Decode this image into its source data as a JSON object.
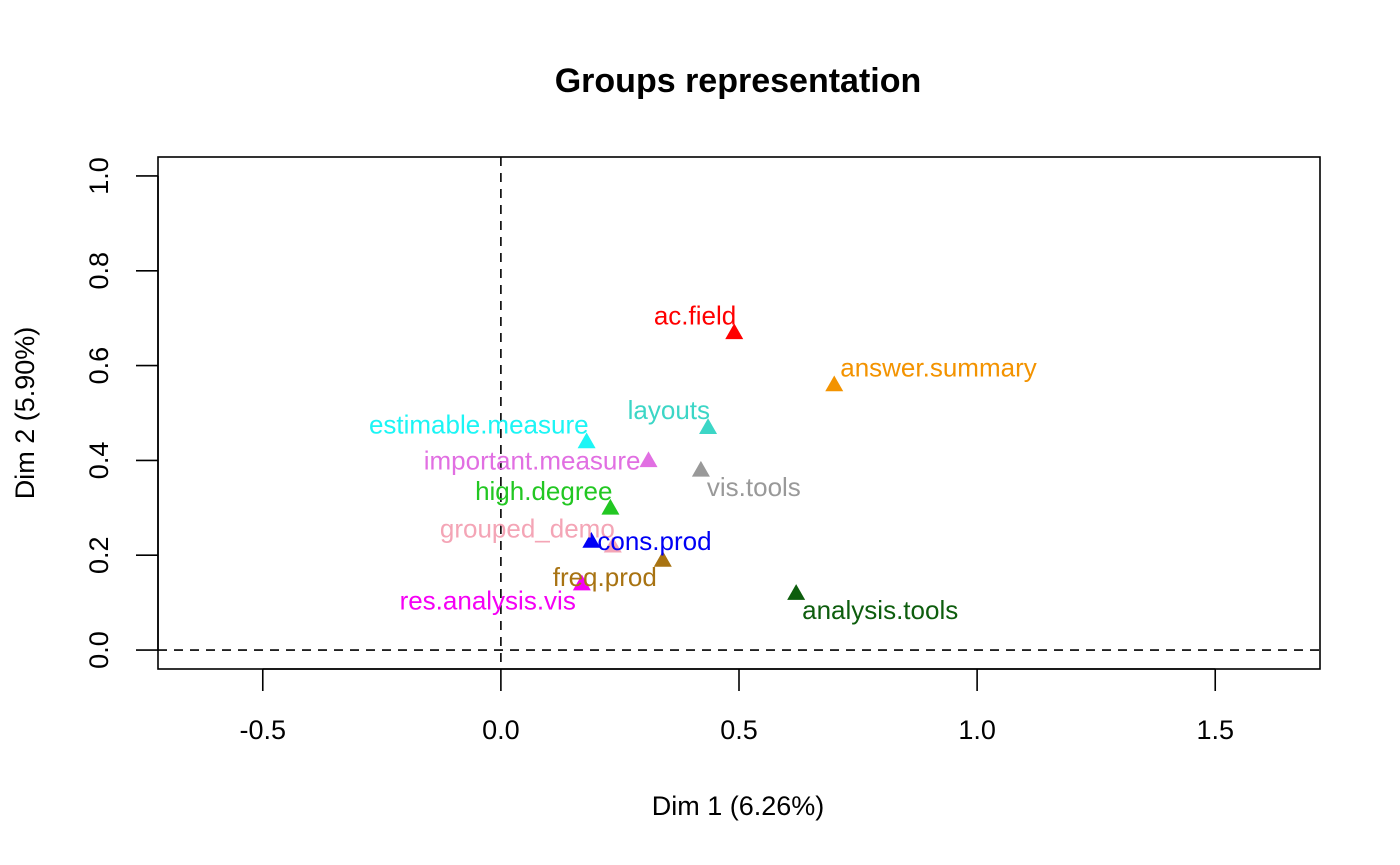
{
  "chart_data": {
    "type": "scatter",
    "title": "Groups representation",
    "xlabel": "Dim 1 (6.26%)",
    "ylabel": "Dim 2 (5.90%)",
    "xlim": [
      -0.72,
      1.72
    ],
    "ylim": [
      -0.04,
      1.04
    ],
    "x_ticks": [
      -0.5,
      0.0,
      0.5,
      1.0,
      1.5
    ],
    "x_tick_labels": [
      "-0.5",
      "0.0",
      "0.5",
      "1.0",
      "1.5"
    ],
    "y_ticks": [
      0.0,
      0.2,
      0.4,
      0.6,
      0.8,
      1.0
    ],
    "y_tick_labels": [
      "0.0",
      "0.2",
      "0.4",
      "0.6",
      "0.8",
      "1.0"
    ],
    "reference_lines": {
      "x": 0,
      "y": 0,
      "style": "dashed"
    },
    "grid": false,
    "marker": "triangle",
    "points": [
      {
        "label": "ac.field",
        "x": 0.49,
        "y": 0.67,
        "color": "#FF0000",
        "label_pos": "top-left"
      },
      {
        "label": "answer.summary",
        "x": 0.7,
        "y": 0.56,
        "color": "#F39300",
        "label_pos": "top-right"
      },
      {
        "label": "layouts",
        "x": 0.435,
        "y": 0.47,
        "color": "#3CD6C6",
        "label_pos": "top-left"
      },
      {
        "label": "estimable.measure",
        "x": 0.18,
        "y": 0.44,
        "color": "#1CF5F5",
        "label_pos": "top-left"
      },
      {
        "label": "important.measure",
        "x": 0.31,
        "y": 0.4,
        "color": "#E16FE2",
        "label_pos": "left"
      },
      {
        "label": "vis.tools",
        "x": 0.42,
        "y": 0.38,
        "color": "#999999",
        "label_pos": "bottom-right"
      },
      {
        "label": "high.degree",
        "x": 0.23,
        "y": 0.3,
        "color": "#22C722",
        "label_pos": "top-left"
      },
      {
        "label": "grouped_demo",
        "x": 0.235,
        "y": 0.22,
        "color": "#F4A5B6",
        "label_pos": "top-left"
      },
      {
        "label": "cons.prod",
        "x": 0.19,
        "y": 0.23,
        "color": "#0000F5",
        "label_pos": "right"
      },
      {
        "label": "freq.prod",
        "x": 0.34,
        "y": 0.19,
        "color": "#A87312",
        "label_pos": "bottom-left"
      },
      {
        "label": "res.analysis.vis",
        "x": 0.17,
        "y": 0.14,
        "color": "#F500F5",
        "label_pos": "bottom-left"
      },
      {
        "label": "analysis.tools",
        "x": 0.62,
        "y": 0.12,
        "color": "#0D5D0D",
        "label_pos": "bottom-right"
      }
    ]
  }
}
